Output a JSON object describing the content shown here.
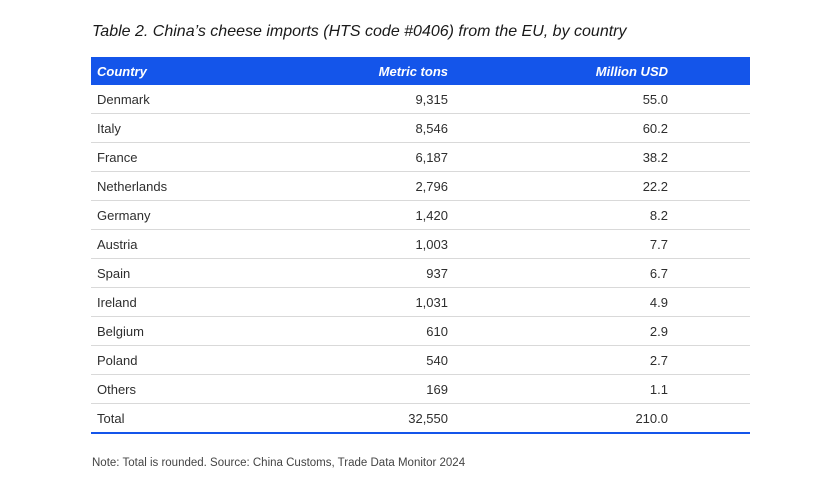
{
  "title": "Table 2. China’s cheese imports (HTS code #0406) from the EU, by country",
  "columns": {
    "country": "Country",
    "metric_tons": "Metric tons",
    "million_usd": "Million USD"
  },
  "rows": [
    {
      "country": "Denmark",
      "metric_tons": "9,315",
      "million_usd": "55.0"
    },
    {
      "country": "Italy",
      "metric_tons": "8,546",
      "million_usd": "60.2"
    },
    {
      "country": "France",
      "metric_tons": "6,187",
      "million_usd": "38.2"
    },
    {
      "country": "Netherlands",
      "metric_tons": "2,796",
      "million_usd": "22.2"
    },
    {
      "country": "Germany",
      "metric_tons": "1,420",
      "million_usd": "8.2"
    },
    {
      "country": "Austria",
      "metric_tons": "1,003",
      "million_usd": "7.7"
    },
    {
      "country": "Spain",
      "metric_tons": "937",
      "million_usd": "6.7"
    },
    {
      "country": "Ireland",
      "metric_tons": "1,031",
      "million_usd": "4.9"
    },
    {
      "country": "Belgium",
      "metric_tons": "610",
      "million_usd": "2.9"
    },
    {
      "country": "Poland",
      "metric_tons": "540",
      "million_usd": "2.7"
    },
    {
      "country": "Others",
      "metric_tons": "169",
      "million_usd": "1.1"
    },
    {
      "country": "Total",
      "metric_tons": "32,550",
      "million_usd": "210.0"
    }
  ],
  "note": "Note: Total is rounded. Source: China Customs, Trade Data Monitor 2024",
  "colors": {
    "header_background": "#1455ea",
    "header_text": "#ffffff",
    "row_divider": "#d9d9d9"
  }
}
